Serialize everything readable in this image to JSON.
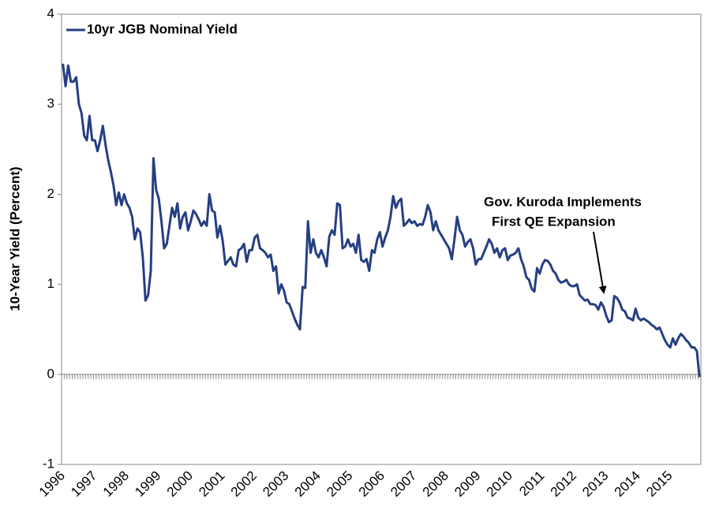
{
  "chart_data": {
    "type": "line",
    "y_label": "10-Year Yield (Percent)",
    "annotation": [
      "Gov. Kuroda Implements",
      "First QE Expansion"
    ],
    "legend": "upper left",
    "categories": [
      "1996",
      null,
      null,
      null,
      null,
      null,
      null,
      null,
      null,
      null,
      null,
      null,
      "1997",
      null,
      null,
      null,
      null,
      null,
      null,
      null,
      null,
      null,
      null,
      null,
      "1998",
      null,
      null,
      null,
      null,
      null,
      null,
      null,
      null,
      null,
      null,
      null,
      "1999",
      null,
      null,
      null,
      null,
      null,
      null,
      null,
      null,
      null,
      null,
      null,
      "2000",
      null,
      null,
      null,
      null,
      null,
      null,
      null,
      null,
      null,
      null,
      null,
      "2001",
      null,
      null,
      null,
      null,
      null,
      null,
      null,
      null,
      null,
      null,
      null,
      "2002",
      null,
      null,
      null,
      null,
      null,
      null,
      null,
      null,
      null,
      null,
      null,
      "2003",
      null,
      null,
      null,
      null,
      null,
      null,
      null,
      null,
      null,
      null,
      null,
      "2004",
      null,
      null,
      null,
      null,
      null,
      null,
      null,
      null,
      null,
      null,
      null,
      "2005",
      null,
      null,
      null,
      null,
      null,
      null,
      null,
      null,
      null,
      null,
      null,
      "2006",
      null,
      null,
      null,
      null,
      null,
      null,
      null,
      null,
      null,
      null,
      null,
      "2007",
      null,
      null,
      null,
      null,
      null,
      null,
      null,
      null,
      null,
      null,
      null,
      "2008",
      null,
      null,
      null,
      null,
      null,
      null,
      null,
      null,
      null,
      null,
      null,
      "2009",
      null,
      null,
      null,
      null,
      null,
      null,
      null,
      null,
      null,
      null,
      null,
      "2010",
      null,
      null,
      null,
      null,
      null,
      null,
      null,
      null,
      null,
      null,
      null,
      "2011",
      null,
      null,
      null,
      null,
      null,
      null,
      null,
      null,
      null,
      null,
      null,
      "2012",
      null,
      null,
      null,
      null,
      null,
      null,
      null,
      null,
      null,
      null,
      null,
      "2013",
      null,
      null,
      null,
      null,
      null,
      null,
      null,
      null,
      null,
      null,
      null,
      "2014",
      null,
      null,
      null,
      null,
      null,
      null,
      null,
      null,
      null,
      null,
      null,
      "2015",
      null,
      null,
      null,
      null,
      null,
      null,
      null,
      null,
      null,
      null,
      null
    ],
    "series": [
      {
        "name": "10yr JGB Nominal Yield",
        "color": "#253f82",
        "values": [
          3.45,
          3.2,
          3.43,
          3.25,
          3.25,
          3.3,
          3.0,
          2.9,
          2.65,
          2.6,
          2.87,
          2.6,
          2.6,
          2.48,
          2.6,
          2.76,
          2.55,
          2.38,
          2.25,
          2.1,
          1.88,
          2.02,
          1.88,
          2.0,
          1.9,
          1.85,
          1.75,
          1.5,
          1.62,
          1.58,
          1.3,
          0.82,
          0.88,
          1.15,
          2.4,
          2.05,
          1.95,
          1.7,
          1.4,
          1.45,
          1.65,
          1.85,
          1.75,
          1.9,
          1.62,
          1.75,
          1.8,
          1.6,
          1.7,
          1.82,
          1.78,
          1.72,
          1.65,
          1.7,
          1.65,
          2.0,
          1.82,
          1.8,
          1.52,
          1.65,
          1.48,
          1.22,
          1.26,
          1.3,
          1.22,
          1.2,
          1.38,
          1.4,
          1.45,
          1.25,
          1.38,
          1.38,
          1.52,
          1.55,
          1.4,
          1.38,
          1.35,
          1.3,
          1.33,
          1.15,
          1.2,
          0.9,
          1.0,
          0.93,
          0.8,
          0.78,
          0.7,
          0.62,
          0.55,
          0.5,
          0.97,
          0.96,
          1.7,
          1.35,
          1.5,
          1.35,
          1.3,
          1.38,
          1.3,
          1.2,
          1.53,
          1.6,
          1.55,
          1.9,
          1.88,
          1.4,
          1.42,
          1.5,
          1.42,
          1.45,
          1.35,
          1.55,
          1.27,
          1.25,
          1.28,
          1.15,
          1.38,
          1.35,
          1.5,
          1.58,
          1.42,
          1.52,
          1.6,
          1.75,
          1.98,
          1.85,
          1.92,
          1.95,
          1.65,
          1.68,
          1.72,
          1.68,
          1.7,
          1.65,
          1.67,
          1.66,
          1.75,
          1.88,
          1.8,
          1.6,
          1.7,
          1.6,
          1.55,
          1.5,
          1.45,
          1.4,
          1.28,
          1.5,
          1.75,
          1.6,
          1.55,
          1.42,
          1.47,
          1.5,
          1.4,
          1.22,
          1.28,
          1.28,
          1.35,
          1.42,
          1.5,
          1.45,
          1.35,
          1.4,
          1.3,
          1.38,
          1.4,
          1.27,
          1.32,
          1.33,
          1.35,
          1.4,
          1.28,
          1.2,
          1.08,
          1.05,
          0.95,
          0.92,
          1.18,
          1.12,
          1.22,
          1.27,
          1.26,
          1.22,
          1.15,
          1.12,
          1.05,
          1.02,
          1.03,
          1.05,
          1.0,
          0.98,
          0.98,
          1.0,
          0.88,
          0.85,
          0.82,
          0.83,
          0.78,
          0.78,
          0.77,
          0.72,
          0.8,
          0.75,
          0.65,
          0.58,
          0.6,
          0.87,
          0.85,
          0.8,
          0.72,
          0.7,
          0.63,
          0.62,
          0.6,
          0.73,
          0.63,
          0.6,
          0.62,
          0.6,
          0.58,
          0.55,
          0.53,
          0.5,
          0.52,
          0.45,
          0.38,
          0.33,
          0.3,
          0.4,
          0.33,
          0.4,
          0.45,
          0.42,
          0.38,
          0.35,
          0.3,
          0.3,
          0.26,
          -0.03
        ]
      }
    ],
    "ylim": [
      -1,
      4
    ],
    "yticks": [
      -1,
      0,
      1,
      2,
      3,
      4
    ]
  }
}
